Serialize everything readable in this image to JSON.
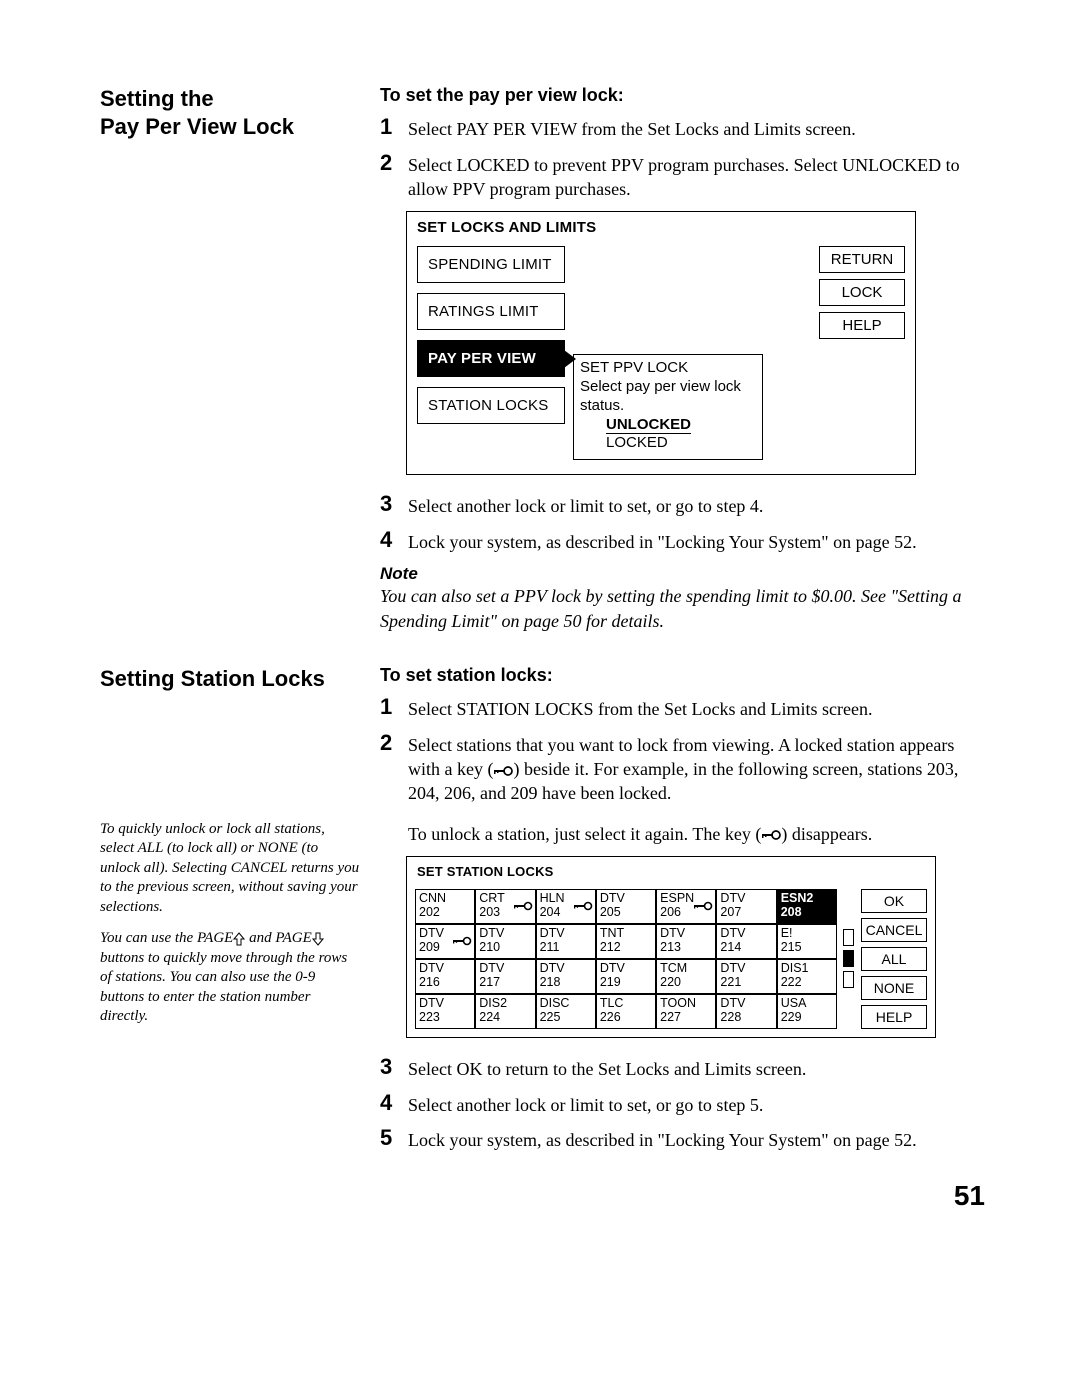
{
  "page_number": "51",
  "ppv": {
    "side_heading_l1": "Setting the",
    "side_heading_l2": "Pay Per View Lock",
    "sub_heading": "To set the pay per view lock:",
    "step1": "Select PAY PER VIEW from the Set Locks and Limits screen.",
    "step2": "Select LOCKED to prevent PPV program purchases. Select UNLOCKED to allow PPV program purchases.",
    "step3": "Select another lock or limit to set, or go to step 4.",
    "step4": "Lock your system, as described in \"Locking Your System\" on page 52.",
    "note_label": "Note",
    "note_body": "You can also set a PPV lock by setting the spending limit to $0.00. See \"Setting a Spending Limit\" on page 50 for details.",
    "fig": {
      "title": "SET LOCKS AND LIMITS",
      "menu": [
        "SPENDING LIMIT",
        "RATINGS LIMIT",
        "PAY PER VIEW",
        "STATION LOCKS"
      ],
      "menu_selected_index": 2,
      "buttons": [
        "RETURN",
        "LOCK",
        "HELP"
      ],
      "popup_title": "SET PPV LOCK",
      "popup_prompt": "Select pay per view lock status.",
      "popup_options": [
        "UNLOCKED",
        "LOCKED"
      ],
      "popup_selected_index": 0
    }
  },
  "sl": {
    "side_heading": "Setting Station Locks",
    "sub_heading": "To set station locks:",
    "step1": "Select STATION LOCKS from the Set Locks and Limits screen.",
    "step2a": "Select stations that you want to lock from viewing. A locked station appears with a key (",
    "step2b": ") beside it. For example, in the following screen, stations 203, 204, 206, and 209 have been locked.",
    "unlock_a": "To unlock a station, just select it again. The key (",
    "unlock_b": ") disappears.",
    "step3": "Select OK to return to the Set Locks and Limits screen.",
    "step4": "Select another lock or limit to set, or go to step 5.",
    "step5": "Lock your system, as described in \"Locking Your System\" on page 52.",
    "sidenote1": "To quickly unlock or lock all stations, select ALL (to lock all) or NONE (to unlock all). Selecting CANCEL returns you to the previous screen, without saving your selections.",
    "sidenote2a": "You can use the PAGE",
    "sidenote2b": " and PAGE",
    "sidenote2c": " buttons to quickly move through the rows of stations. You can also use the 0-9 buttons to enter the station number directly.",
    "fig": {
      "title": "SET STATION LOCKS",
      "buttons": [
        "OK",
        "CANCEL",
        "ALL",
        "NONE",
        "HELP"
      ],
      "selected_index": 6,
      "locked_indices": [
        1,
        2,
        4,
        7
      ],
      "cells": [
        {
          "lab": "CNN",
          "num": "202"
        },
        {
          "lab": "CRT",
          "num": "203"
        },
        {
          "lab": "HLN",
          "num": "204"
        },
        {
          "lab": "DTV",
          "num": "205"
        },
        {
          "lab": "ESPN",
          "num": "206"
        },
        {
          "lab": "DTV",
          "num": "207"
        },
        {
          "lab": "ESN2",
          "num": "208"
        },
        {
          "lab": "DTV",
          "num": "209"
        },
        {
          "lab": "DTV",
          "num": "210"
        },
        {
          "lab": "DTV",
          "num": "211"
        },
        {
          "lab": "TNT",
          "num": "212"
        },
        {
          "lab": "DTV",
          "num": "213"
        },
        {
          "lab": "DTV",
          "num": "214"
        },
        {
          "lab": "E!",
          "num": "215"
        },
        {
          "lab": "DTV",
          "num": "216"
        },
        {
          "lab": "DTV",
          "num": "217"
        },
        {
          "lab": "DTV",
          "num": "218"
        },
        {
          "lab": "DTV",
          "num": "219"
        },
        {
          "lab": "TCM",
          "num": "220"
        },
        {
          "lab": "DTV",
          "num": "221"
        },
        {
          "lab": "DIS1",
          "num": "222"
        },
        {
          "lab": "DTV",
          "num": "223"
        },
        {
          "lab": "DIS2",
          "num": "224"
        },
        {
          "lab": "DISC",
          "num": "225"
        },
        {
          "lab": "TLC",
          "num": "226"
        },
        {
          "lab": "TOON",
          "num": "227"
        },
        {
          "lab": "DTV",
          "num": "228"
        },
        {
          "lab": "USA",
          "num": "229"
        }
      ]
    }
  }
}
